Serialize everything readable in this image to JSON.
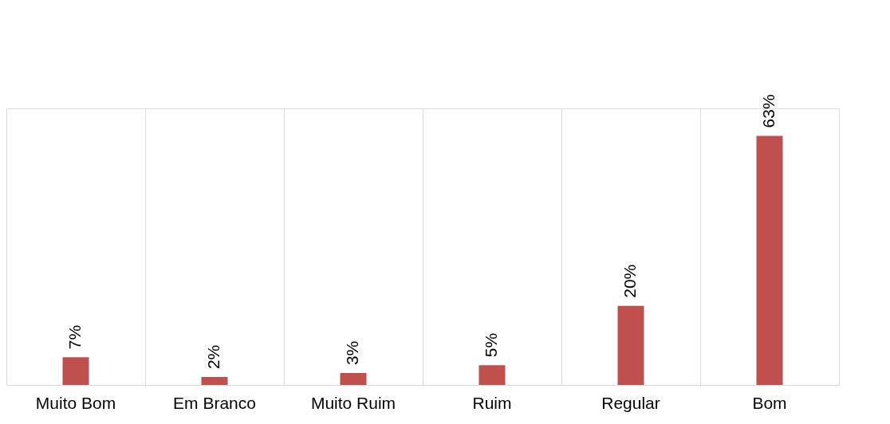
{
  "chart_data": {
    "type": "bar",
    "categories": [
      "Muito Bom",
      "Em Branco",
      "Muito Ruim",
      "Ruim",
      "Regular",
      "Bom"
    ],
    "values": [
      7,
      2,
      3,
      5,
      20,
      63
    ],
    "value_labels": [
      "7%",
      "2%",
      "3%",
      "5%",
      "20%",
      "63%"
    ],
    "color": "#c0504d",
    "grid": "x"
  }
}
